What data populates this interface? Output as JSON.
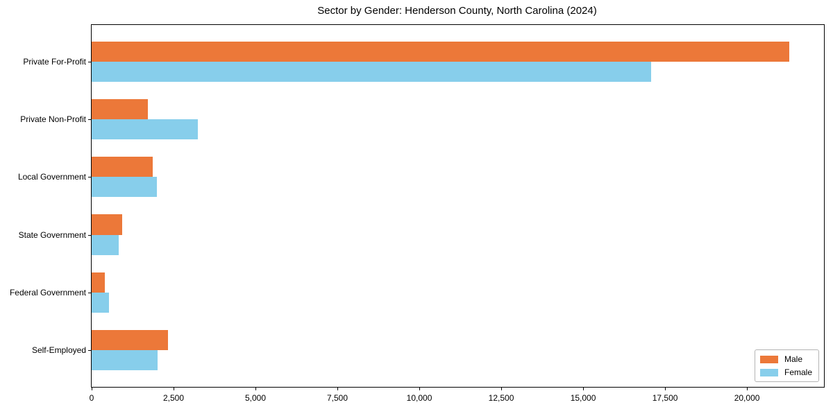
{
  "title": "Sector by Gender: Henderson County, North Carolina (2024)",
  "chart_data": {
    "type": "bar",
    "orientation": "horizontal",
    "title": "Sector by Gender: Henderson County, North Carolina (2024)",
    "xlabel": "",
    "ylabel": "",
    "categories": [
      "Private For-Profit",
      "Private Non-Profit",
      "Local Government",
      "State Government",
      "Federal Government",
      "Self-Employed"
    ],
    "series": [
      {
        "name": "Male",
        "color": "#ec7839",
        "values": [
          21300,
          1710,
          1870,
          940,
          400,
          2330
        ]
      },
      {
        "name": "Female",
        "color": "#87ceeb",
        "values": [
          17080,
          3250,
          2000,
          830,
          520,
          2010
        ]
      }
    ],
    "xlim": [
      0,
      22350
    ],
    "xticks": [
      0,
      2500,
      5000,
      7500,
      10000,
      12500,
      15000,
      17500,
      20000
    ],
    "xtick_labels": [
      "0",
      "2,500",
      "5,000",
      "7,500",
      "10,000",
      "12,500",
      "15,000",
      "17,500",
      "20,000"
    ],
    "grid": false,
    "legend_position": "lower right",
    "bar_height_frac": 0.35,
    "category_outer_margin": 0.635
  }
}
